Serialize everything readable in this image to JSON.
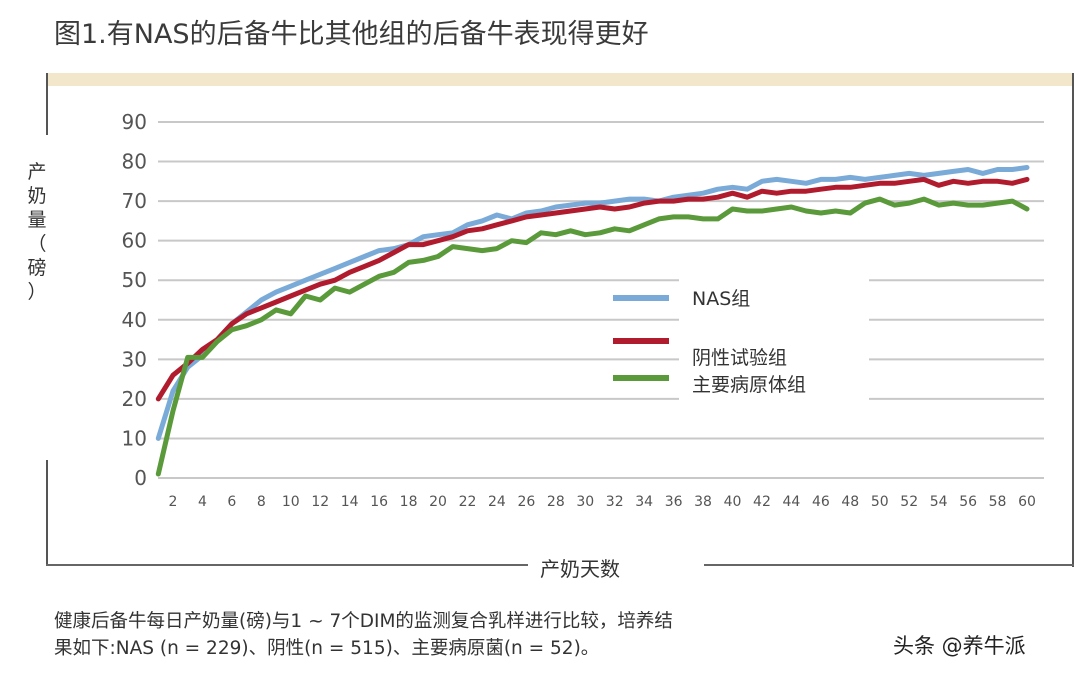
{
  "header": {
    "title": "图1.有NAS的后备牛比其他组的后备牛表现得更好"
  },
  "axes": {
    "y_title_chars": [
      "产",
      "奶",
      "量",
      "（",
      "磅",
      "）"
    ],
    "y_title": "产奶量（磅）",
    "x_title": "产奶天数",
    "y_ticks": [
      "0",
      "10",
      "20",
      "30",
      "40",
      "50",
      "60",
      "70",
      "80",
      "90"
    ],
    "x_ticks": [
      "2",
      "4",
      "6",
      "8",
      "10",
      "12",
      "14",
      "16",
      "18",
      "20",
      "22",
      "24",
      "26",
      "28",
      "30",
      "32",
      "34",
      "36",
      "38",
      "40",
      "42",
      "44",
      "46",
      "48",
      "50",
      "52",
      "54",
      "56",
      "58",
      "60"
    ]
  },
  "legend": {
    "items": [
      {
        "label": "NAS组",
        "color": "#7aaad8"
      },
      {
        "label": "阴性试验组",
        "color": "#b01c2e"
      },
      {
        "label": "主要病原体组",
        "color": "#5a9a3a"
      }
    ]
  },
  "caption": {
    "line1": "健康后备牛每日产奶量(磅)与1 ~ 7个DIM的监测复合乳样进行比较，培养结",
    "line2": "果如下:NAS (n = 229)、阴性(n = 515)、主要病原菌(n = 52)。"
  },
  "watermark": "头条 @养牛派",
  "colors": {
    "band": "#f2e6cb",
    "grid": "#c8c8c8",
    "nas": "#7aaad8",
    "negative": "#b01c2e",
    "major_pathogen": "#5a9a3a"
  },
  "chart_data": {
    "type": "line",
    "title": "图1.有NAS的后备牛比其他组的后备牛表现得更好",
    "xlabel": "产奶天数",
    "ylabel": "产奶量（磅）",
    "ylim": [
      0,
      90
    ],
    "xlim": [
      1,
      60
    ],
    "grid": true,
    "legend_position": "center-right",
    "x": [
      1,
      2,
      3,
      4,
      5,
      6,
      7,
      8,
      9,
      10,
      11,
      12,
      13,
      14,
      15,
      16,
      17,
      18,
      19,
      20,
      21,
      22,
      23,
      24,
      25,
      26,
      27,
      28,
      29,
      30,
      31,
      32,
      33,
      34,
      35,
      36,
      37,
      38,
      39,
      40,
      41,
      42,
      43,
      44,
      45,
      46,
      47,
      48,
      49,
      50,
      51,
      52,
      53,
      54,
      55,
      56,
      57,
      58,
      59,
      60
    ],
    "series": [
      {
        "name": "NAS组",
        "color": "#7aaad8",
        "values": [
          10,
          22,
          28,
          31,
          35,
          39,
          42,
          45,
          47,
          48.5,
          50,
          51.5,
          53,
          54.5,
          56,
          57.5,
          58,
          59,
          61,
          61.5,
          62,
          64,
          65,
          66.5,
          65.5,
          67,
          67.5,
          68.5,
          69,
          69.5,
          69.5,
          70,
          70.5,
          70.5,
          70,
          71,
          71.5,
          72,
          73,
          73.5,
          73,
          75,
          75.5,
          75,
          74.5,
          75.5,
          75.5,
          76,
          75.5,
          76,
          76.5,
          77,
          76.5,
          77,
          77.5,
          78,
          77,
          78,
          78,
          78.5
        ]
      },
      {
        "name": "阴性试验组",
        "color": "#b01c2e",
        "values": [
          20,
          26,
          29,
          32.5,
          35,
          39,
          41.5,
          43,
          44.5,
          46,
          47.5,
          49,
          50,
          52,
          53.5,
          55,
          57,
          59,
          59,
          60,
          61,
          62.5,
          63,
          64,
          65,
          66,
          66.5,
          67,
          67.5,
          68,
          68.5,
          68,
          68.5,
          69.5,
          70,
          70,
          70.5,
          70.5,
          71,
          72,
          71,
          72.5,
          72,
          72.5,
          72.5,
          73,
          73.5,
          73.5,
          74,
          74.5,
          74.5,
          75,
          75.5,
          74,
          75,
          74.5,
          75,
          75,
          74.5,
          75.5
        ]
      },
      {
        "name": "主要病原体组",
        "color": "#5a9a3a",
        "values": [
          1,
          17,
          30.5,
          30.5,
          34.5,
          37.5,
          38.5,
          40,
          42.5,
          41.5,
          46,
          45,
          48,
          47,
          49,
          51,
          52,
          54.5,
          55,
          56,
          58.5,
          58,
          57.5,
          58,
          60,
          59.5,
          62,
          61.5,
          62.5,
          61.5,
          62,
          63,
          62.5,
          64,
          65.5,
          66,
          66,
          65.5,
          65.5,
          68,
          67.5,
          67.5,
          68,
          68.5,
          67.5,
          67,
          67.5,
          67,
          69.5,
          70.5,
          69,
          69.5,
          70.5,
          69,
          69.5,
          69,
          69,
          69.5,
          70,
          68
        ]
      }
    ]
  }
}
